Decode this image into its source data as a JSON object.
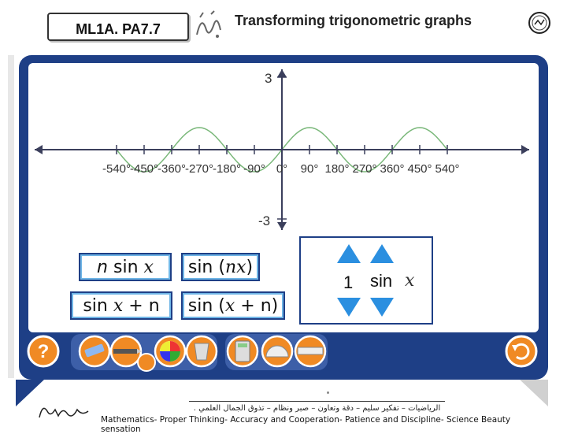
{
  "header": {
    "code": "ML1A. PA7.7",
    "title": "Transforming trigonometric graphs"
  },
  "graph": {
    "y_ticks": [
      "3",
      "-3"
    ],
    "x_ticks": [
      "-540°",
      "-450°",
      "-360°",
      "-270°",
      "-180°",
      "-90°",
      "0°",
      "90°",
      "180°",
      "270°",
      "360°",
      "450°",
      "540°"
    ],
    "curve_color": "#7ab87a",
    "axis_color": "#3b3f5c"
  },
  "formulas": {
    "f1": {
      "pre": "n sin ",
      "var": "x"
    },
    "f2": {
      "pre": "sin (",
      "var": "nx",
      "post": ")"
    },
    "f3": {
      "pre": "sin ",
      "var": "x",
      "post": " + n"
    },
    "f4": {
      "pre": "sin (",
      "var": "x",
      "post": " + n)"
    }
  },
  "control": {
    "value": "1",
    "func": "sin",
    "var": "x"
  },
  "colors": {
    "frame": "#1e3f86",
    "button_orange": "#f08a24",
    "arrow_blue": "#2b8fe0"
  },
  "footer": {
    "arabic": "الرياضيات – تفكير سليم – دقة وتعاون – صبر ونظام – تذوق الجمال العلمي .",
    "english": "Mathematics- Proper Thinking- Accuracy and Cooperation- Patience and Discipline- Science Beauty sensation"
  }
}
